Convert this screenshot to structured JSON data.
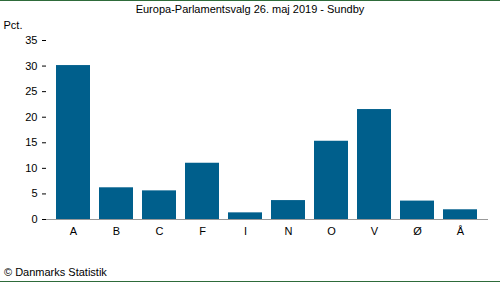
{
  "chart_data": {
    "type": "bar",
    "title": "Europa-Parlamentsvalg 26. maj 2019 - Sundby",
    "y_label": "Pct.",
    "caption": "© Danmarks Statistik",
    "categories": [
      "A",
      "B",
      "C",
      "F",
      "I",
      "N",
      "O",
      "V",
      "Ø",
      "Å"
    ],
    "values": [
      30.1,
      6.2,
      5.6,
      11.0,
      1.3,
      3.7,
      15.3,
      21.5,
      3.6,
      1.9
    ],
    "color": "#005f8c",
    "ylim": [
      0,
      35
    ],
    "yticks": [
      0,
      5,
      10,
      15,
      20,
      25,
      30,
      35
    ],
    "grid": false
  }
}
